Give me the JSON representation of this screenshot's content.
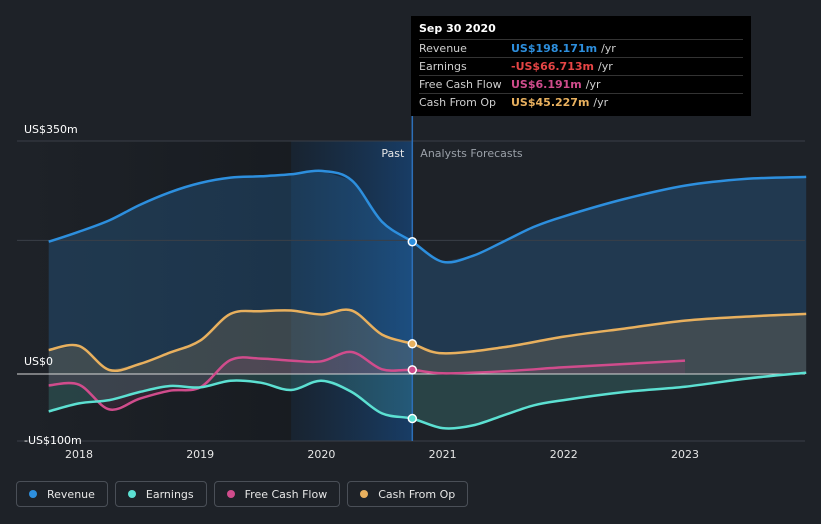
{
  "chart_data": {
    "type": "area",
    "y_unit": "US$m",
    "ylim": [
      -100,
      350
    ],
    "y_ticks": [
      {
        "value": 350,
        "label": "US$350m"
      },
      {
        "value": 0,
        "label": "US$0"
      },
      {
        "value": -100,
        "label": "-US$100m"
      }
    ],
    "x_ticks": [
      {
        "value": 2018.0,
        "label": "2018"
      },
      {
        "value": 2019.0,
        "label": "2019"
      },
      {
        "value": 2020.0,
        "label": "2020"
      },
      {
        "value": 2021.0,
        "label": "2021"
      },
      {
        "value": 2022.0,
        "label": "2022"
      },
      {
        "value": 2023.0,
        "label": "2023"
      }
    ],
    "xlim": [
      2017.5,
      2024.0
    ],
    "divider_x": 2020.75,
    "past_label": "Past",
    "forecast_label": "Analysts Forecasts",
    "series": [
      {
        "name": "Revenue",
        "color": "#2d8fde",
        "points": [
          [
            2017.75,
            198
          ],
          [
            2018.0,
            213
          ],
          [
            2018.25,
            230
          ],
          [
            2018.5,
            253
          ],
          [
            2018.75,
            272
          ],
          [
            2019.0,
            286
          ],
          [
            2019.25,
            294
          ],
          [
            2019.5,
            296
          ],
          [
            2019.75,
            299
          ],
          [
            2020.0,
            304
          ],
          [
            2020.25,
            290
          ],
          [
            2020.5,
            228
          ],
          [
            2020.75,
            198
          ],
          [
            2021.0,
            168
          ],
          [
            2021.25,
            177
          ],
          [
            2021.5,
            198
          ],
          [
            2021.75,
            220
          ],
          [
            2022.0,
            236
          ],
          [
            2022.5,
            262
          ],
          [
            2023.0,
            282
          ],
          [
            2023.5,
            292
          ],
          [
            2024.0,
            295
          ]
        ]
      },
      {
        "name": "Earnings",
        "color": "#5ce0d2",
        "points": [
          [
            2017.75,
            -56
          ],
          [
            2018.0,
            -44
          ],
          [
            2018.25,
            -39
          ],
          [
            2018.5,
            -27
          ],
          [
            2018.75,
            -18
          ],
          [
            2019.0,
            -20
          ],
          [
            2019.25,
            -10
          ],
          [
            2019.5,
            -13
          ],
          [
            2019.75,
            -24
          ],
          [
            2020.0,
            -10
          ],
          [
            2020.25,
            -27
          ],
          [
            2020.5,
            -59
          ],
          [
            2020.75,
            -66.7
          ],
          [
            2021.0,
            -81
          ],
          [
            2021.25,
            -77
          ],
          [
            2021.5,
            -62
          ],
          [
            2021.75,
            -47
          ],
          [
            2022.0,
            -39
          ],
          [
            2022.5,
            -27
          ],
          [
            2023.0,
            -19
          ],
          [
            2023.5,
            -7
          ],
          [
            2024.0,
            2
          ]
        ]
      },
      {
        "name": "Free Cash Flow",
        "color": "#d04c8c",
        "points": [
          [
            2017.75,
            -17
          ],
          [
            2018.0,
            -16
          ],
          [
            2018.25,
            -53
          ],
          [
            2018.5,
            -37
          ],
          [
            2018.75,
            -25
          ],
          [
            2019.0,
            -20
          ],
          [
            2019.25,
            21
          ],
          [
            2019.5,
            23
          ],
          [
            2019.75,
            20
          ],
          [
            2020.0,
            19
          ],
          [
            2020.25,
            33
          ],
          [
            2020.5,
            7
          ],
          [
            2020.75,
            6.2
          ],
          [
            2021.0,
            1
          ],
          [
            2021.5,
            4
          ],
          [
            2022.0,
            10
          ],
          [
            2022.5,
            15
          ],
          [
            2023.0,
            20
          ]
        ]
      },
      {
        "name": "Cash From Op",
        "color": "#e8b05e",
        "points": [
          [
            2017.75,
            36
          ],
          [
            2018.0,
            42
          ],
          [
            2018.25,
            6
          ],
          [
            2018.5,
            15
          ],
          [
            2018.75,
            32
          ],
          [
            2019.0,
            50
          ],
          [
            2019.25,
            90
          ],
          [
            2019.5,
            94
          ],
          [
            2019.75,
            95
          ],
          [
            2020.0,
            89
          ],
          [
            2020.25,
            95
          ],
          [
            2020.5,
            59
          ],
          [
            2020.75,
            45.2
          ],
          [
            2021.0,
            31
          ],
          [
            2021.5,
            40
          ],
          [
            2022.0,
            56
          ],
          [
            2022.5,
            68
          ],
          [
            2023.0,
            80
          ],
          [
            2023.5,
            86
          ],
          [
            2024.0,
            90
          ]
        ]
      }
    ],
    "tooltip": {
      "date": "Sep 30 2020",
      "rows": [
        {
          "label": "Revenue",
          "value": "US$198.171m",
          "unit": "/yr",
          "color": "#2d8fde"
        },
        {
          "label": "Earnings",
          "value": "-US$66.713m",
          "unit": "/yr",
          "color": "#e64545"
        },
        {
          "label": "Free Cash Flow",
          "value": "US$6.191m",
          "unit": "/yr",
          "color": "#d04c8c"
        },
        {
          "label": "Cash From Op",
          "value": "US$45.227m",
          "unit": "/yr",
          "color": "#e8b05e"
        }
      ]
    }
  },
  "legend": [
    {
      "label": "Revenue",
      "color": "#2d8fde"
    },
    {
      "label": "Earnings",
      "color": "#5ce0d2"
    },
    {
      "label": "Free Cash Flow",
      "color": "#d04c8c"
    },
    {
      "label": "Cash From Op",
      "color": "#e8b05e"
    }
  ]
}
